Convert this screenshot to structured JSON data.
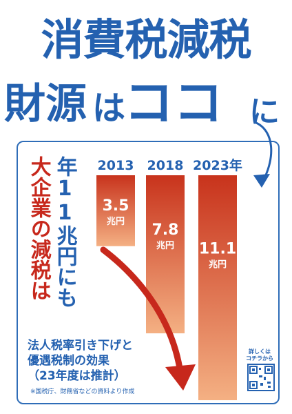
{
  "poster": {
    "title_line1": "消費税減税",
    "title_line2": [
      "財源",
      "は",
      "ココ",
      "に"
    ],
    "vertical_red": "大企業の減税は",
    "vertical_blue": "年11兆円にも",
    "notes": [
      "法人税率引き下げと",
      "優遇税制の効果",
      "（23年度は推計）"
    ],
    "source": "※国税庁、財務省などの資料より作成",
    "qr_label": [
      "詳しくは",
      "コチラから"
    ]
  },
  "chart_data": {
    "type": "bar",
    "categories": [
      "2013",
      "2018",
      "2023年"
    ],
    "values": [
      3.5,
      7.8,
      11.1
    ],
    "value_labels": [
      "3.5",
      "7.8",
      "11.1"
    ],
    "unit": "兆円",
    "ylim": [
      0,
      11.1
    ],
    "colors": {
      "top": "#c8331c",
      "bottom": "#f4b083"
    }
  },
  "colors": {
    "blue": "#2461b0",
    "red": "#c7281c",
    "arrow": "#c7281c"
  },
  "icons": [
    "swoosh-arrow-icon",
    "down-arrow-icon",
    "qr-code-icon"
  ]
}
